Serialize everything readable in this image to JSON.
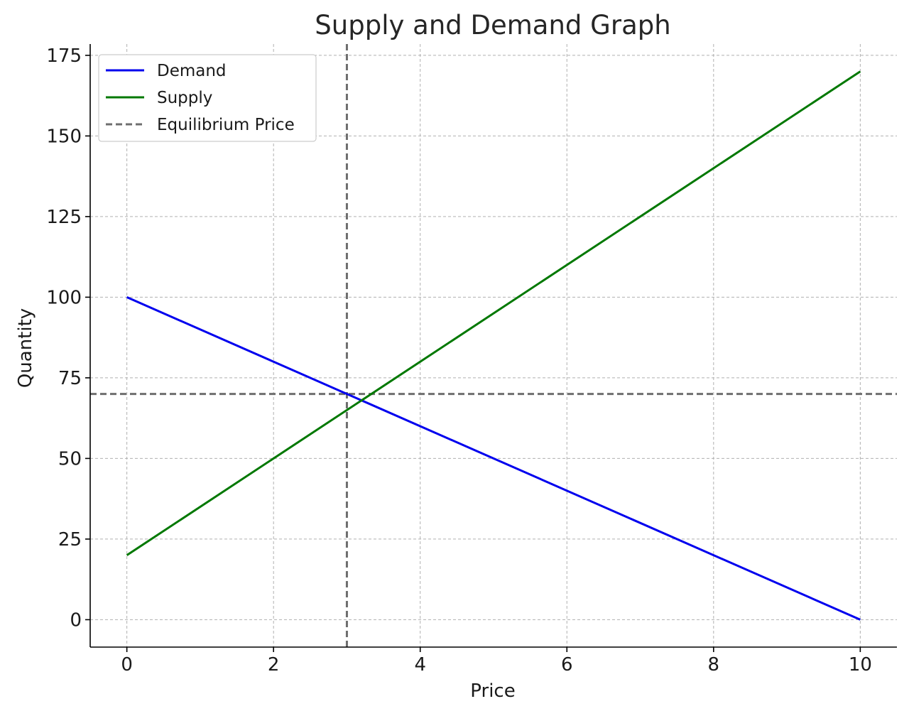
{
  "chart_data": {
    "type": "line",
    "title": "Supply and Demand Graph",
    "xlabel": "Price",
    "ylabel": "Quantity",
    "xlim": [
      -0.5,
      10.5
    ],
    "ylim": [
      -8.5,
      178.5
    ],
    "xticks": [
      0,
      2,
      4,
      6,
      8,
      10
    ],
    "yticks": [
      0,
      25,
      50,
      75,
      100,
      125,
      150,
      175
    ],
    "xtick_labels": [
      "0",
      "2",
      "4",
      "6",
      "8",
      "10"
    ],
    "ytick_labels": [
      "0",
      "25",
      "50",
      "75",
      "100",
      "125",
      "150",
      "175"
    ],
    "grid": true,
    "legend_position": "top-left",
    "series": [
      {
        "name": "Demand",
        "color": "#0000ee",
        "style": "solid",
        "x": [
          0,
          10
        ],
        "y": [
          100,
          0
        ]
      },
      {
        "name": "Supply",
        "color": "#007800",
        "style": "solid",
        "x": [
          0,
          10
        ],
        "y": [
          20,
          170
        ]
      }
    ],
    "reference_lines": [
      {
        "name": "Equilibrium Price",
        "orientation": "vertical",
        "value": 3,
        "color": "#6e6e6e",
        "style": "dashed"
      },
      {
        "orientation": "horizontal",
        "value": 70,
        "color": "#6e6e6e",
        "style": "dashed"
      }
    ]
  }
}
